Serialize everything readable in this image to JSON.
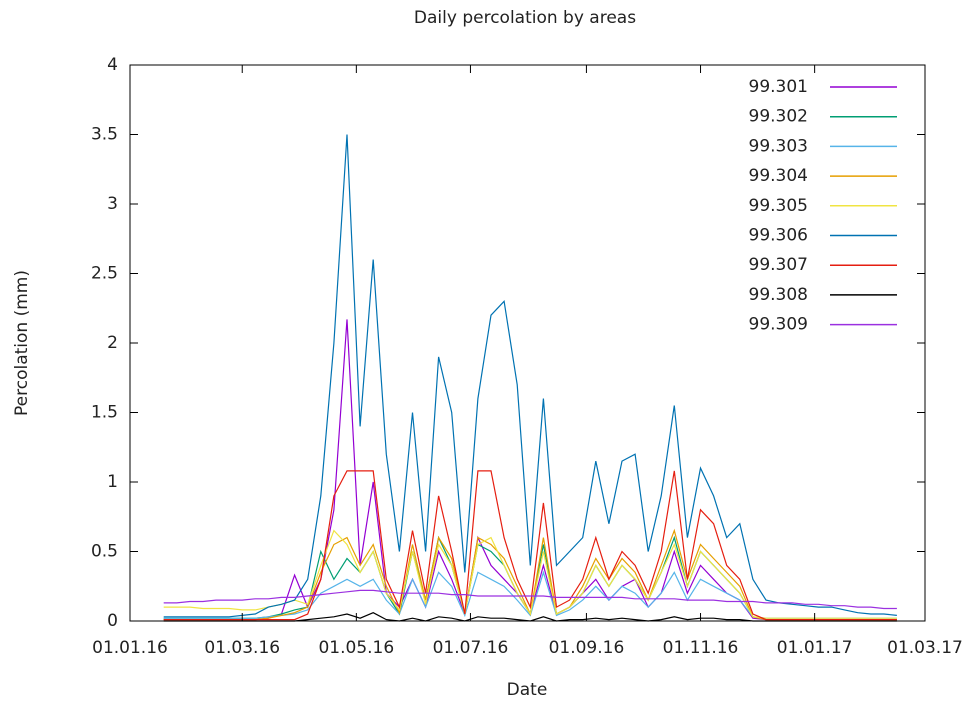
{
  "chart_data": {
    "type": "line",
    "title": "Daily percolation by areas",
    "x_label": "Date",
    "y_label": "Percolation (mm)",
    "x": [
      "2016-01-19",
      "2016-01-26",
      "2016-02-02",
      "2016-02-09",
      "2016-02-16",
      "2016-02-23",
      "2016-03-01",
      "2016-03-08",
      "2016-03-15",
      "2016-03-22",
      "2016-03-29",
      "2016-04-05",
      "2016-04-12",
      "2016-04-19",
      "2016-04-26",
      "2016-05-03",
      "2016-05-10",
      "2016-05-17",
      "2016-05-24",
      "2016-05-31",
      "2016-06-07",
      "2016-06-14",
      "2016-06-21",
      "2016-06-28",
      "2016-07-05",
      "2016-07-12",
      "2016-07-19",
      "2016-07-26",
      "2016-08-02",
      "2016-08-09",
      "2016-08-16",
      "2016-08-23",
      "2016-08-30",
      "2016-09-06",
      "2016-09-13",
      "2016-09-20",
      "2016-09-27",
      "2016-10-04",
      "2016-10-11",
      "2016-10-18",
      "2016-10-25",
      "2016-11-01",
      "2016-11-08",
      "2016-11-15",
      "2016-11-22",
      "2016-11-29",
      "2016-12-06",
      "2016-12-13",
      "2016-12-20",
      "2016-12-27",
      "2017-01-03",
      "2017-01-10",
      "2017-01-17",
      "2017-01-24",
      "2017-01-31",
      "2017-02-07",
      "2017-02-14"
    ],
    "xlim": [
      "2016-01-01",
      "2017-03-01"
    ],
    "xticks": [
      {
        "value": "2016-01-01",
        "label": "01.01.16"
      },
      {
        "value": "2016-03-01",
        "label": "01.03.16"
      },
      {
        "value": "2016-05-01",
        "label": "01.05.16"
      },
      {
        "value": "2016-07-01",
        "label": "01.07.16"
      },
      {
        "value": "2016-09-01",
        "label": "01.09.16"
      },
      {
        "value": "2016-11-01",
        "label": "01.11.16"
      },
      {
        "value": "2017-01-01",
        "label": "01.01.17"
      },
      {
        "value": "2017-03-01",
        "label": "01.03.17"
      }
    ],
    "ylim": [
      0,
      4
    ],
    "yticks": [
      0,
      0.5,
      1,
      1.5,
      2,
      2.5,
      3,
      3.5,
      4
    ],
    "grid": false,
    "legend": "top-right",
    "series": [
      {
        "name": "99.301",
        "color": "#9400d3",
        "values": [
          0.01,
          0.01,
          0.01,
          0.01,
          0.01,
          0.01,
          0.01,
          0.01,
          0.02,
          0.05,
          0.33,
          0.1,
          0.3,
          0.8,
          2.17,
          0.4,
          1.0,
          0.2,
          0.1,
          0.3,
          0.1,
          0.5,
          0.3,
          0.05,
          0.6,
          0.4,
          0.3,
          0.2,
          0.05,
          0.4,
          0.05,
          0.1,
          0.2,
          0.3,
          0.15,
          0.25,
          0.3,
          0.1,
          0.2,
          0.5,
          0.2,
          0.4,
          0.3,
          0.2,
          0.15,
          0.02,
          0.01,
          0.01,
          0.01,
          0.01,
          0.01,
          0.01,
          0.01,
          0.01,
          0.01,
          0.01,
          0.01
        ]
      },
      {
        "name": "99.302",
        "color": "#009e73",
        "values": [
          0.02,
          0.02,
          0.02,
          0.02,
          0.02,
          0.02,
          0.02,
          0.02,
          0.03,
          0.05,
          0.08,
          0.1,
          0.5,
          0.3,
          0.45,
          0.35,
          0.5,
          0.2,
          0.05,
          0.5,
          0.15,
          0.6,
          0.4,
          0.05,
          0.55,
          0.5,
          0.4,
          0.2,
          0.05,
          0.55,
          0.05,
          0.1,
          0.2,
          0.4,
          0.25,
          0.4,
          0.3,
          0.15,
          0.35,
          0.6,
          0.25,
          0.5,
          0.4,
          0.3,
          0.2,
          0.03,
          0.01,
          0.01,
          0.01,
          0.01,
          0.01,
          0.01,
          0.01,
          0.01,
          0.01,
          0.01,
          0.01
        ]
      },
      {
        "name": "99.303",
        "color": "#56b4e9",
        "values": [
          0.02,
          0.02,
          0.02,
          0.02,
          0.02,
          0.02,
          0.02,
          0.02,
          0.03,
          0.04,
          0.05,
          0.08,
          0.2,
          0.25,
          0.3,
          0.25,
          0.3,
          0.15,
          0.05,
          0.3,
          0.1,
          0.35,
          0.25,
          0.04,
          0.35,
          0.3,
          0.25,
          0.15,
          0.04,
          0.35,
          0.04,
          0.08,
          0.15,
          0.25,
          0.15,
          0.25,
          0.2,
          0.1,
          0.2,
          0.35,
          0.15,
          0.3,
          0.25,
          0.2,
          0.15,
          0.03,
          0.02,
          0.02,
          0.02,
          0.02,
          0.02,
          0.02,
          0.02,
          0.02,
          0.02,
          0.02,
          0.02
        ]
      },
      {
        "name": "99.304",
        "color": "#e69f00",
        "values": [
          0.01,
          0.01,
          0.01,
          0.01,
          0.01,
          0.01,
          0.01,
          0.01,
          0.02,
          0.04,
          0.06,
          0.1,
          0.35,
          0.55,
          0.6,
          0.4,
          0.55,
          0.25,
          0.06,
          0.55,
          0.15,
          0.6,
          0.45,
          0.05,
          0.6,
          0.55,
          0.45,
          0.25,
          0.05,
          0.6,
          0.05,
          0.1,
          0.25,
          0.45,
          0.3,
          0.45,
          0.35,
          0.15,
          0.4,
          0.65,
          0.3,
          0.55,
          0.45,
          0.35,
          0.25,
          0.03,
          0.01,
          0.01,
          0.01,
          0.01,
          0.01,
          0.01,
          0.01,
          0.01,
          0.01,
          0.01,
          0.01
        ]
      },
      {
        "name": "99.305",
        "color": "#f0e442",
        "values": [
          0.1,
          0.1,
          0.1,
          0.09,
          0.09,
          0.09,
          0.08,
          0.08,
          0.1,
          0.12,
          0.15,
          0.12,
          0.4,
          0.65,
          0.55,
          0.35,
          0.5,
          0.2,
          0.08,
          0.5,
          0.12,
          0.55,
          0.4,
          0.05,
          0.55,
          0.6,
          0.4,
          0.2,
          0.05,
          0.5,
          0.05,
          0.1,
          0.2,
          0.4,
          0.25,
          0.4,
          0.3,
          0.15,
          0.35,
          0.55,
          0.25,
          0.5,
          0.4,
          0.3,
          0.2,
          0.03,
          0.02,
          0.02,
          0.02,
          0.02,
          0.02,
          0.02,
          0.02,
          0.02,
          0.02,
          0.02,
          0.02
        ]
      },
      {
        "name": "99.306",
        "color": "#0072b2",
        "values": [
          0.03,
          0.03,
          0.03,
          0.03,
          0.03,
          0.03,
          0.04,
          0.05,
          0.1,
          0.12,
          0.15,
          0.3,
          0.9,
          2.0,
          3.5,
          1.4,
          2.6,
          1.2,
          0.5,
          1.5,
          0.5,
          1.9,
          1.5,
          0.35,
          1.6,
          2.2,
          2.3,
          1.7,
          0.4,
          1.6,
          0.4,
          0.5,
          0.6,
          1.15,
          0.7,
          1.15,
          1.2,
          0.5,
          0.9,
          1.55,
          0.6,
          1.1,
          0.9,
          0.6,
          0.7,
          0.3,
          0.15,
          0.13,
          0.12,
          0.11,
          0.1,
          0.1,
          0.08,
          0.06,
          0.05,
          0.05,
          0.04
        ]
      },
      {
        "name": "99.307",
        "color": "#e51e10",
        "values": [
          0.01,
          0.01,
          0.01,
          0.01,
          0.01,
          0.01,
          0.01,
          0.01,
          0.01,
          0.01,
          0.01,
          0.05,
          0.3,
          0.9,
          1.08,
          1.08,
          1.08,
          0.3,
          0.1,
          0.65,
          0.2,
          0.9,
          0.5,
          0.05,
          1.08,
          1.08,
          0.6,
          0.3,
          0.1,
          0.85,
          0.1,
          0.15,
          0.3,
          0.6,
          0.3,
          0.5,
          0.4,
          0.2,
          0.5,
          1.08,
          0.3,
          0.8,
          0.7,
          0.4,
          0.3,
          0.05,
          0.01,
          0.01,
          0.01,
          0.01,
          0.01,
          0.01,
          0.01,
          0.01,
          0.01,
          0.01,
          0.01
        ]
      },
      {
        "name": "99.308",
        "color": "#000000",
        "values": [
          0,
          0,
          0,
          0,
          0,
          0,
          0,
          0,
          0,
          0,
          0,
          0.01,
          0.02,
          0.03,
          0.05,
          0.02,
          0.06,
          0.01,
          0,
          0.02,
          0,
          0.03,
          0.02,
          0,
          0.03,
          0.02,
          0.02,
          0.01,
          0,
          0.03,
          0,
          0.01,
          0.01,
          0.02,
          0.01,
          0.02,
          0.01,
          0,
          0.01,
          0.03,
          0.01,
          0.02,
          0.02,
          0.01,
          0.01,
          0,
          0,
          0,
          0,
          0,
          0,
          0,
          0,
          0,
          0,
          0,
          0
        ]
      },
      {
        "name": "99.309",
        "color": "#9b30e0",
        "values": [
          0.13,
          0.13,
          0.14,
          0.14,
          0.15,
          0.15,
          0.15,
          0.16,
          0.16,
          0.17,
          0.17,
          0.18,
          0.19,
          0.2,
          0.21,
          0.22,
          0.22,
          0.21,
          0.2,
          0.2,
          0.2,
          0.2,
          0.19,
          0.19,
          0.18,
          0.18,
          0.18,
          0.18,
          0.18,
          0.18,
          0.17,
          0.17,
          0.17,
          0.17,
          0.17,
          0.17,
          0.16,
          0.16,
          0.16,
          0.16,
          0.15,
          0.15,
          0.15,
          0.14,
          0.14,
          0.14,
          0.13,
          0.13,
          0.13,
          0.12,
          0.12,
          0.11,
          0.11,
          0.1,
          0.1,
          0.09,
          0.09
        ]
      }
    ]
  }
}
